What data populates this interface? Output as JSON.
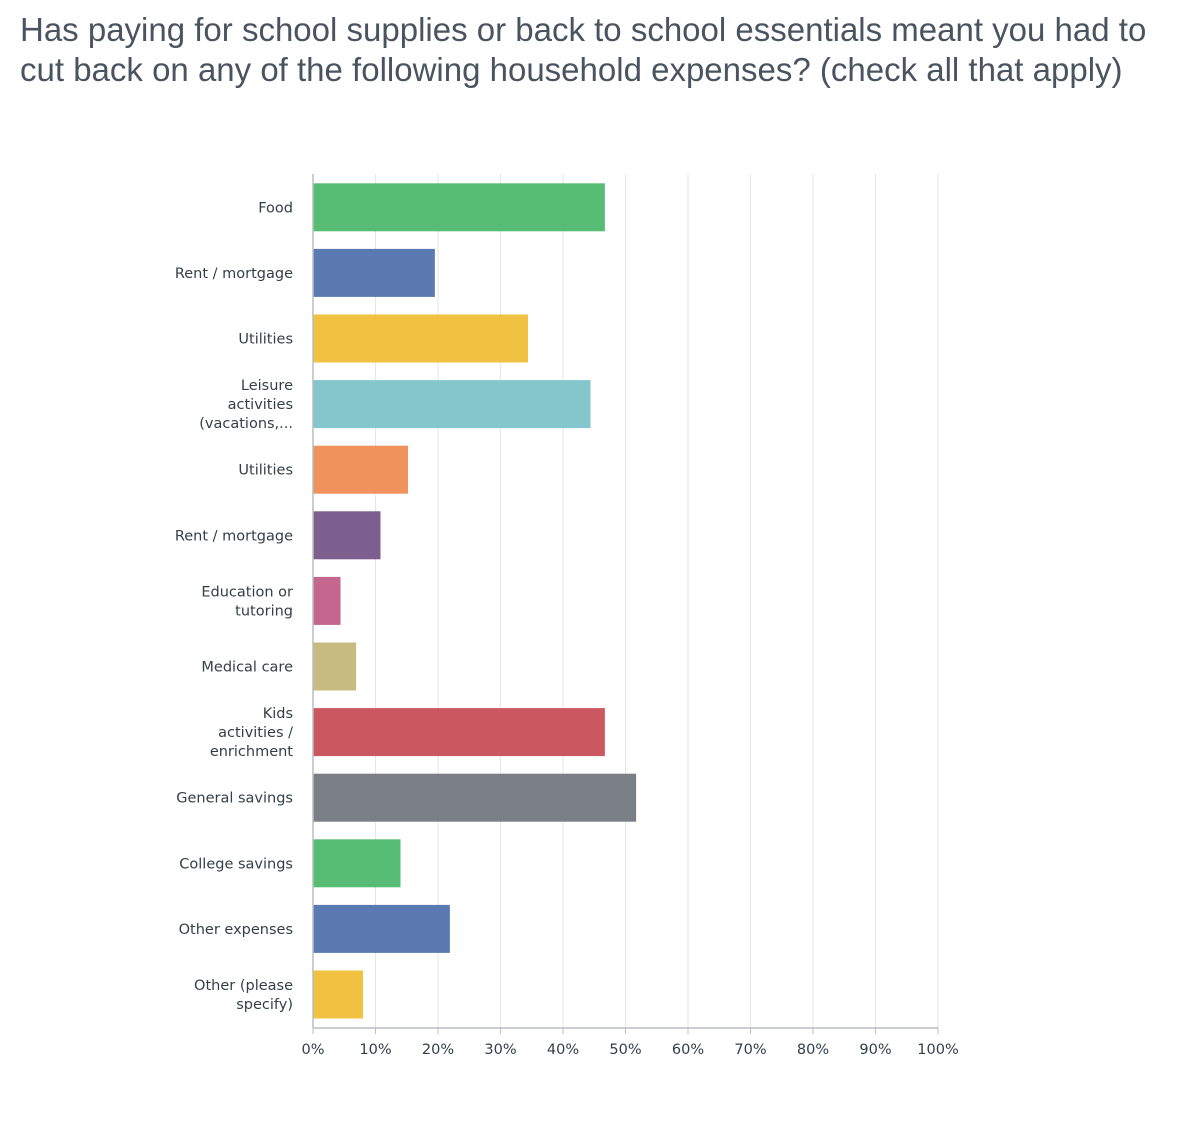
{
  "chart_data": {
    "type": "bar",
    "orientation": "horizontal",
    "title": "Has paying for school supplies or back to school essentials meant you had to cut back on any of the following household expenses? (check all that apply)",
    "categories": [
      [
        "Food"
      ],
      [
        "Rent / mortgage"
      ],
      [
        "Utilities"
      ],
      [
        "Leisure",
        "activities",
        "(vacations,..."
      ],
      [
        "Utilities"
      ],
      [
        "Rent / mortgage"
      ],
      [
        "Education or",
        "tutoring"
      ],
      [
        "Medical care"
      ],
      [
        "Kids",
        "activities /",
        "enrichment"
      ],
      [
        "General savings"
      ],
      [
        "College savings"
      ],
      [
        "Other expenses"
      ],
      [
        "Other (please",
        "specify)"
      ]
    ],
    "values": [
      46.7,
      19.5,
      34.4,
      44.4,
      15.2,
      10.8,
      4.4,
      6.9,
      46.7,
      51.7,
      14.0,
      21.9,
      8.0
    ],
    "unit": "%",
    "colors": [
      "#57bd75",
      "#5a7ab1",
      "#f1c141",
      "#84c6cb",
      "#ef925c",
      "#7c5e8f",
      "#c4678f",
      "#c7bb82",
      "#cb5760",
      "#7a7f86",
      "#57bd75",
      "#5a7ab1",
      "#f1c141"
    ],
    "xlim": [
      0,
      100
    ],
    "xticks": [
      "0%",
      "10%",
      "20%",
      "30%",
      "40%",
      "50%",
      "60%",
      "70%",
      "80%",
      "90%",
      "100%"
    ],
    "grid": true,
    "legend": "none"
  }
}
